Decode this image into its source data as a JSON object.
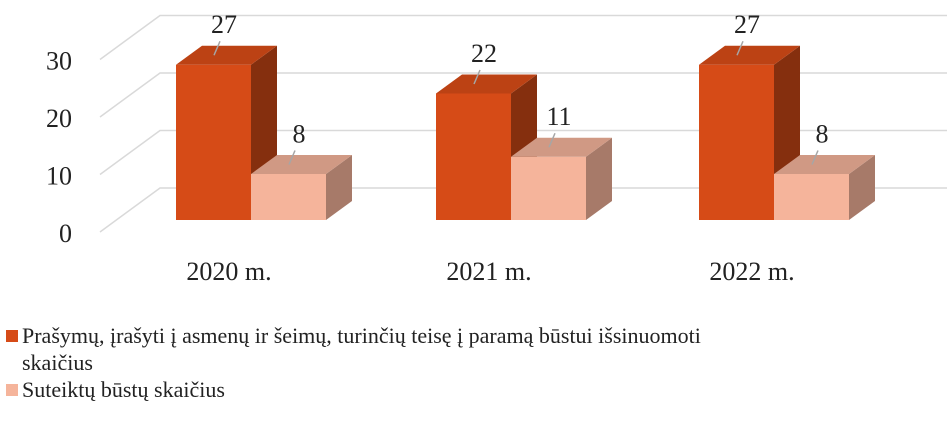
{
  "chart_data": {
    "type": "bar3d",
    "categories": [
      "2020 m.",
      "2021 m.",
      "2022 m."
    ],
    "series": [
      {
        "name": "Prašymų, įrašyti į asmenų ir šeimų, turinčių teisę į paramą būstui išsinuomoti\nskaičius",
        "color": "#d64b17",
        "values": [
          27,
          22,
          27
        ]
      },
      {
        "name": "Suteiktų būstų skaičius",
        "color": "#f5b49b",
        "values": [
          8,
          11,
          8
        ]
      }
    ],
    "ylim": [
      0,
      30
    ],
    "yticks": [
      0,
      10,
      20,
      30
    ],
    "grid": true,
    "legend": "bottom"
  }
}
